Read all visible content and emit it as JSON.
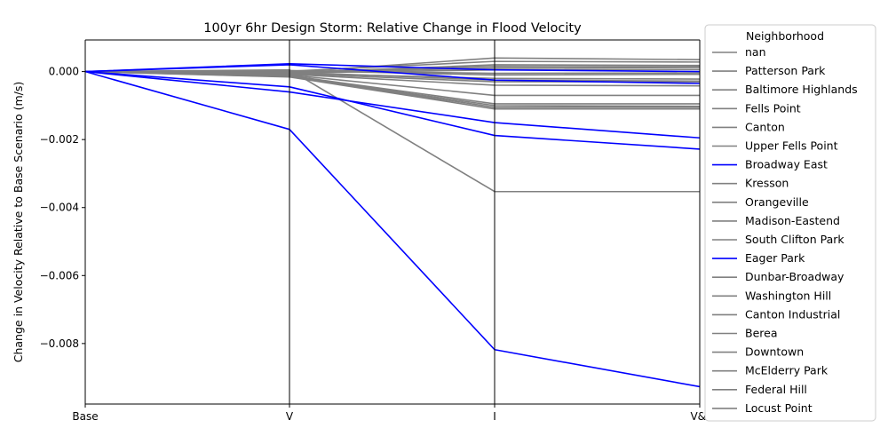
{
  "chart_data": {
    "type": "line",
    "title": "100yr 6hr Design Storm: Relative Change in Flood Velocity",
    "xlabel": "",
    "ylabel": "Change in Velocity Relative to Base Scenario (m/s)",
    "categories": [
      "Base",
      "V",
      "I",
      "V&I"
    ],
    "ylim": [
      -0.00978,
      0.00093
    ],
    "yticks": [
      0.0,
      -0.002,
      -0.004,
      -0.006,
      -0.008
    ],
    "ytick_labels": [
      "0.000",
      "−0.002",
      "−0.004",
      "−0.006",
      "−0.008"
    ],
    "vertical_axis_lines": true,
    "legend": {
      "title": "Neighborhood",
      "placement": "outside-right"
    },
    "colors": {
      "highlight": "#0000ff",
      "other": "#808080"
    },
    "series": [
      {
        "name": "nan",
        "color": "#808080",
        "values": [
          0,
          -2e-05,
          0.0004,
          0.00035
        ]
      },
      {
        "name": "Patterson Park",
        "color": "#808080",
        "values": [
          0,
          1e-05,
          0.0003,
          0.00028
        ]
      },
      {
        "name": "Baltimore Highlands",
        "color": "#808080",
        "values": [
          0,
          -3e-05,
          0.0002,
          0.00018
        ]
      },
      {
        "name": "Fells Point",
        "color": "#808080",
        "values": [
          0,
          -2e-05,
          0.0001,
          0.00012
        ]
      },
      {
        "name": "Canton",
        "color": "#808080",
        "values": [
          0,
          -4e-05,
          5e-05,
          6e-05
        ]
      },
      {
        "name": "Upper Fells Point",
        "color": "#808080",
        "values": [
          0,
          3e-05,
          -0.0001,
          -8e-05
        ]
      },
      {
        "name": "Broadway East",
        "color": "#0000ff",
        "values": [
          0,
          -0.0006,
          -0.0015,
          -0.00195
        ]
      },
      {
        "name": "Kresson",
        "color": "#808080",
        "values": [
          0,
          -5e-05,
          -0.0002,
          -0.00022
        ]
      },
      {
        "name": "Orangeville",
        "color": "#808080",
        "values": [
          0,
          -6e-05,
          -0.0003,
          -0.0003
        ]
      },
      {
        "name": "Madison-Eastend",
        "color": "#808080",
        "values": [
          0,
          -8e-05,
          -0.0004,
          -0.00042
        ]
      },
      {
        "name": "South Clifton Park",
        "color": "#808080",
        "values": [
          0,
          -0.0001,
          -0.0007,
          -0.0007
        ]
      },
      {
        "name": "Eager Park",
        "color": "#0000ff",
        "values": [
          0,
          -0.0017,
          -0.00818,
          -0.00927
        ]
      },
      {
        "name": "Dunbar-Broadway",
        "color": "#808080",
        "values": [
          0,
          -0.00012,
          -0.00095,
          -0.00095
        ]
      },
      {
        "name": "Washington Hill",
        "color": "#808080",
        "values": [
          0,
          -0.00014,
          -0.001,
          -0.00102
        ]
      },
      {
        "name": "Canton Industrial",
        "color": "#808080",
        "values": [
          0,
          -0.00015,
          -0.00105,
          -0.00105
        ]
      },
      {
        "name": "Berea",
        "color": "#808080",
        "values": [
          0,
          -0.00016,
          -0.0011,
          -0.0011
        ]
      },
      {
        "name": "Downtown",
        "color": "#808080",
        "values": [
          0,
          5e-05,
          -0.00353,
          -0.00353
        ]
      },
      {
        "name": "McElderry Park",
        "color": "#808080",
        "values": [
          0,
          -2e-05,
          -0.00025,
          -0.00028
        ]
      },
      {
        "name": "Federal Hill",
        "color": "#808080",
        "values": [
          0,
          2e-05,
          -5e-05,
          -4e-05
        ]
      },
      {
        "name": "Locust Point",
        "color": "#808080",
        "values": [
          0,
          -1e-05,
          0.00015,
          0.00014
        ]
      },
      {
        "name": "",
        "color": "#0000ff",
        "values": [
          0,
          0.00023,
          5e-05,
          0.0
        ]
      },
      {
        "name": "",
        "color": "#0000ff",
        "values": [
          0,
          -0.00045,
          -0.00188,
          -0.00228
        ]
      },
      {
        "name": "",
        "color": "#0000ff",
        "values": [
          0,
          0.0002,
          -0.00025,
          -0.00035
        ]
      }
    ]
  }
}
